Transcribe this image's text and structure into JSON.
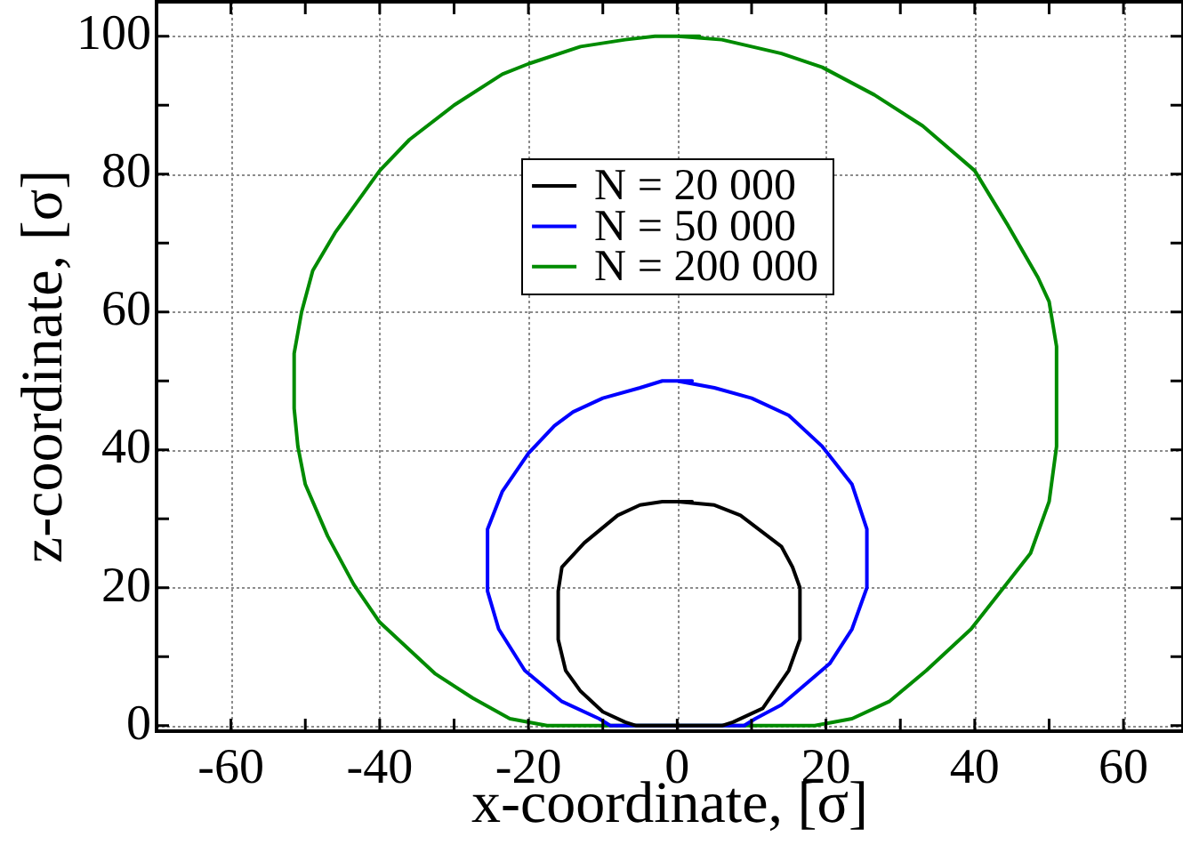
{
  "chart_data": {
    "type": "line",
    "xlabel": "x-coordinate, [σ]",
    "ylabel": "z-coordinate, [σ]",
    "xlim": [
      -70,
      68
    ],
    "ylim": [
      -0.8,
      105
    ],
    "xticks": [
      -60,
      {
        "value": -50,
        "label": null
      },
      -40,
      {
        "value": -30,
        "label": null
      },
      -20,
      {
        "value": -10,
        "label": null
      },
      0,
      {
        "value": 10,
        "label": null
      },
      20,
      {
        "value": 30,
        "label": null
      },
      40,
      {
        "value": 50,
        "label": null
      },
      60
    ],
    "yticks": [
      0,
      {
        "value": 10,
        "label": null
      },
      20,
      {
        "value": 30,
        "label": null
      },
      40,
      {
        "value": 50,
        "label": null
      },
      60,
      {
        "value": 70,
        "label": null
      },
      80,
      {
        "value": 90,
        "label": null
      },
      100
    ],
    "grid": true,
    "legend": "top",
    "marker": "none",
    "line_style": "solid",
    "series": [
      {
        "name": "N = 20 000",
        "color": "#000000",
        "x": [
          2,
          -2,
          -5,
          -8,
          -12.5,
          -15.5,
          -16,
          -16,
          -15,
          -13,
          -10,
          -7,
          -5.5,
          6,
          7.5,
          11.5,
          15,
          16.5,
          16.5,
          15.5,
          14,
          8.5,
          5,
          0
        ],
        "values": [
          32.5,
          32.5,
          32,
          30.5,
          26.5,
          23,
          19.5,
          12.5,
          8,
          5,
          2,
          0.5,
          0,
          0,
          0.5,
          2.5,
          8,
          12.5,
          20,
          23,
          26,
          30.5,
          32,
          32.5
        ]
      },
      {
        "name": "N = 50 000",
        "color": "#0000ff",
        "x": [
          2,
          -2,
          -5,
          -10,
          -14,
          -16.5,
          -20,
          -23.5,
          -25.5,
          -25.5,
          -24,
          -20.5,
          -15.5,
          -10.5,
          -9,
          9,
          10.5,
          14,
          20.5,
          23.5,
          25.5,
          25.5,
          23.5,
          19.5,
          15,
          10,
          5,
          0
        ],
        "values": [
          50,
          50,
          49,
          47.5,
          45.5,
          43.5,
          39.5,
          34,
          28.5,
          19.5,
          14,
          8,
          3.5,
          1,
          0,
          0,
          1,
          3,
          9,
          14,
          20,
          28.5,
          35,
          40.5,
          45,
          47.5,
          49,
          50
        ]
      },
      {
        "name": "N = 200 000",
        "color": "#008b00",
        "x": [
          3,
          -3,
          -7,
          -13,
          -20,
          -23.5,
          -30,
          -36,
          -40,
          -44,
          -46,
          -49,
          -50.5,
          -51.5,
          -51.5,
          -51,
          -50,
          -47,
          -43.5,
          -40,
          -32.5,
          -27.5,
          -22.5,
          -17.5,
          18.5,
          23.5,
          28.5,
          33.5,
          39.5,
          43.5,
          47.5,
          50,
          51,
          51,
          50,
          48.5,
          44.5,
          40,
          33,
          26.5,
          19.5,
          14,
          6,
          0
        ],
        "values": [
          100,
          100,
          99.5,
          98.5,
          96,
          94.5,
          90,
          85,
          80.5,
          74.5,
          71.5,
          66,
          60,
          54,
          46,
          40.5,
          35,
          27.5,
          20.5,
          15,
          7.5,
          4,
          1,
          0,
          0,
          1,
          3.5,
          8,
          14,
          19.5,
          25,
          32.5,
          40.5,
          55,
          61.5,
          65,
          72.5,
          80.5,
          87,
          91.5,
          95.5,
          97.5,
          99.5,
          100
        ]
      }
    ]
  }
}
